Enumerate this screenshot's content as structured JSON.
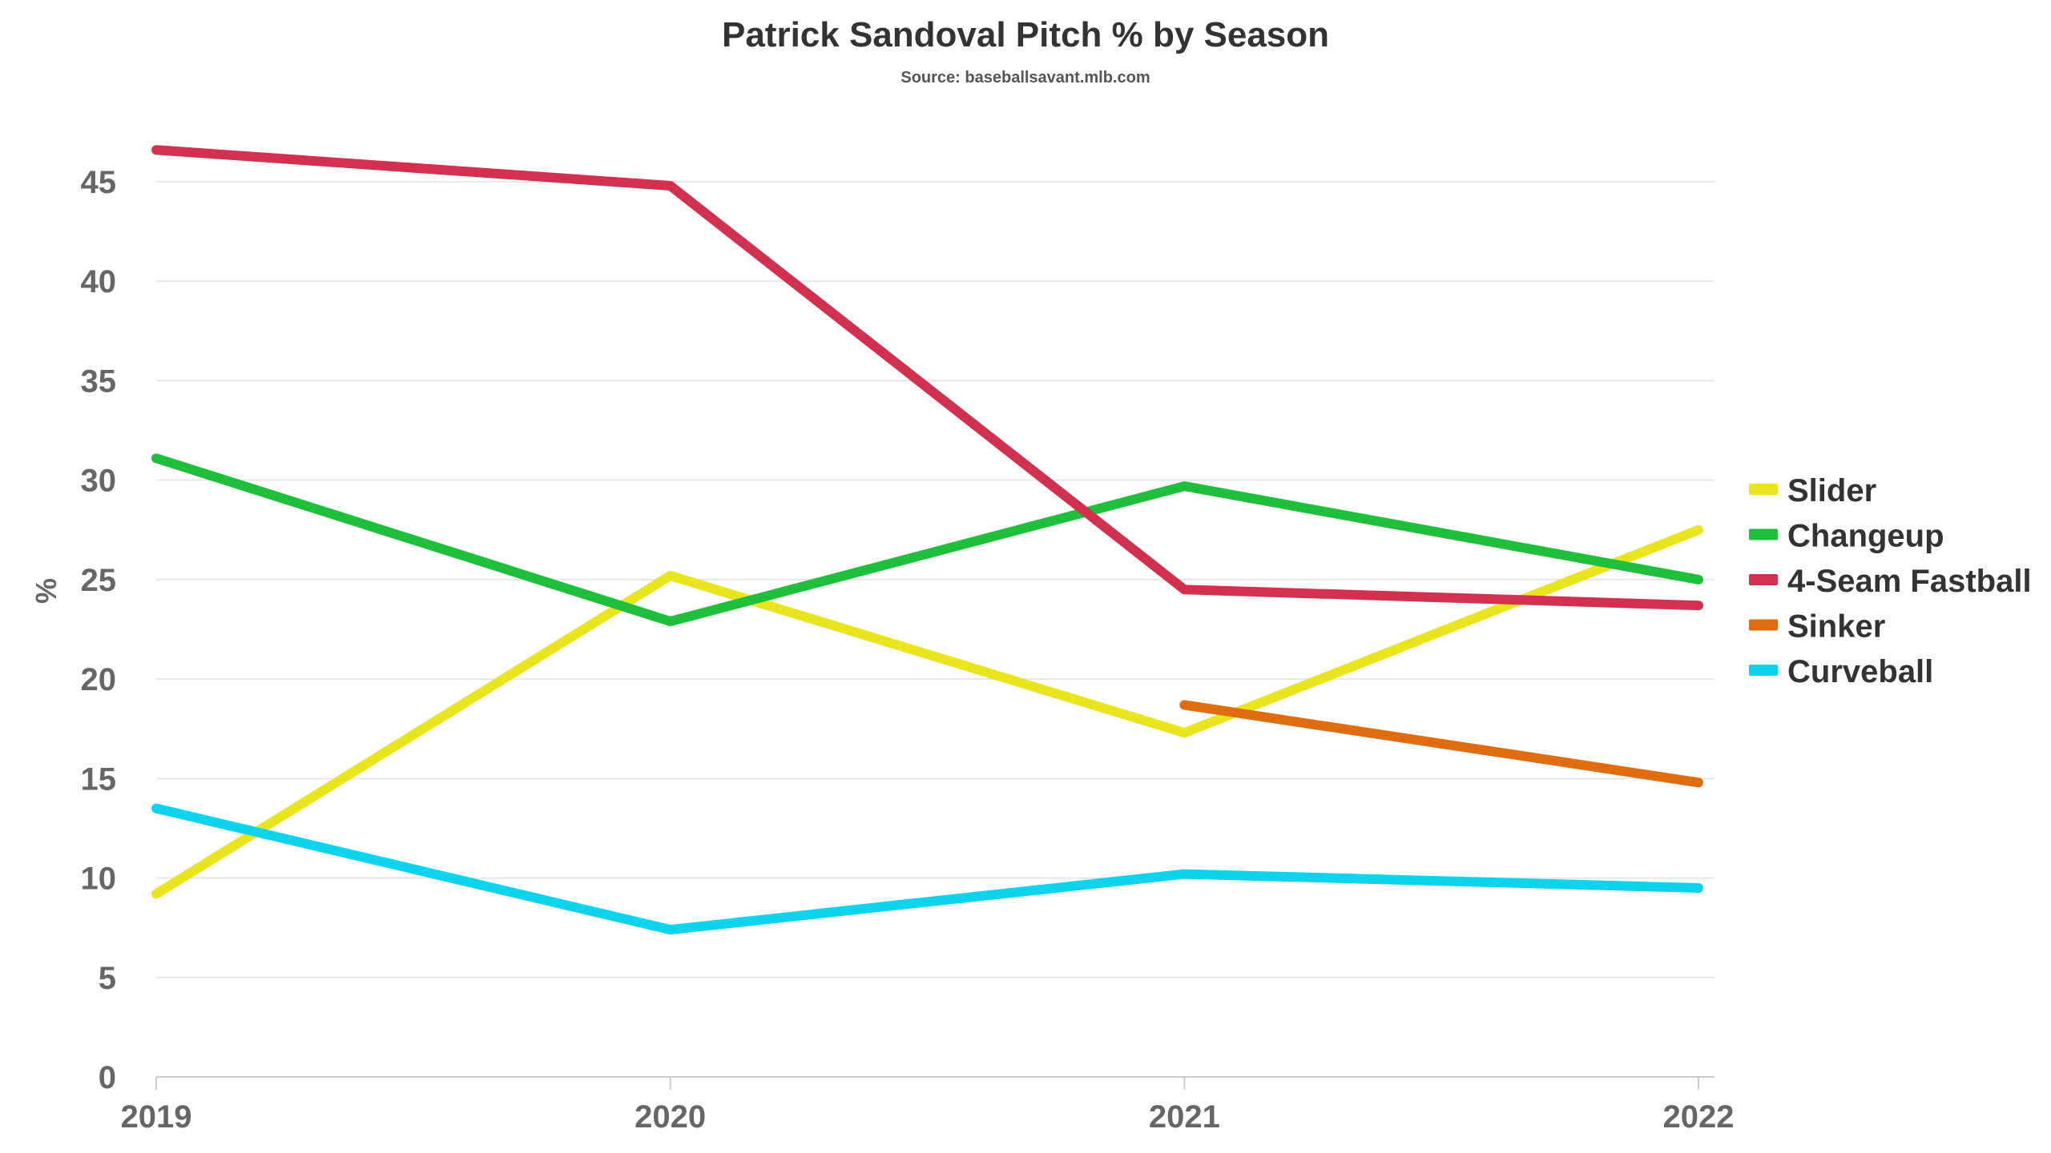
{
  "chart_data": {
    "type": "line",
    "title": "Patrick Sandoval Pitch % by Season",
    "subtitle": "Source: baseballsavant.mlb.com",
    "xlabel": "",
    "ylabel": "%",
    "categories": [
      "2019",
      "2020",
      "2021",
      "2022"
    ],
    "ylim": [
      0,
      45
    ],
    "yticks": [
      0,
      5,
      10,
      15,
      20,
      25,
      30,
      35,
      40,
      45
    ],
    "grid": true,
    "legend_position": "right",
    "series": [
      {
        "name": "Slider",
        "color": "#e8e51f",
        "values": [
          9.2,
          25.2,
          17.3,
          27.5
        ]
      },
      {
        "name": "Changeup",
        "color": "#1fbf3c",
        "values": [
          31.1,
          22.9,
          29.7,
          25.0
        ]
      },
      {
        "name": "4-Seam Fastball",
        "color": "#d1304f",
        "values": [
          46.6,
          44.8,
          24.5,
          23.7
        ]
      },
      {
        "name": "Sinker",
        "color": "#df6c0f",
        "values": [
          null,
          null,
          18.7,
          14.8
        ]
      },
      {
        "name": "Curveball",
        "color": "#0dd3ec",
        "values": [
          13.5,
          7.4,
          10.2,
          9.5
        ]
      }
    ]
  }
}
